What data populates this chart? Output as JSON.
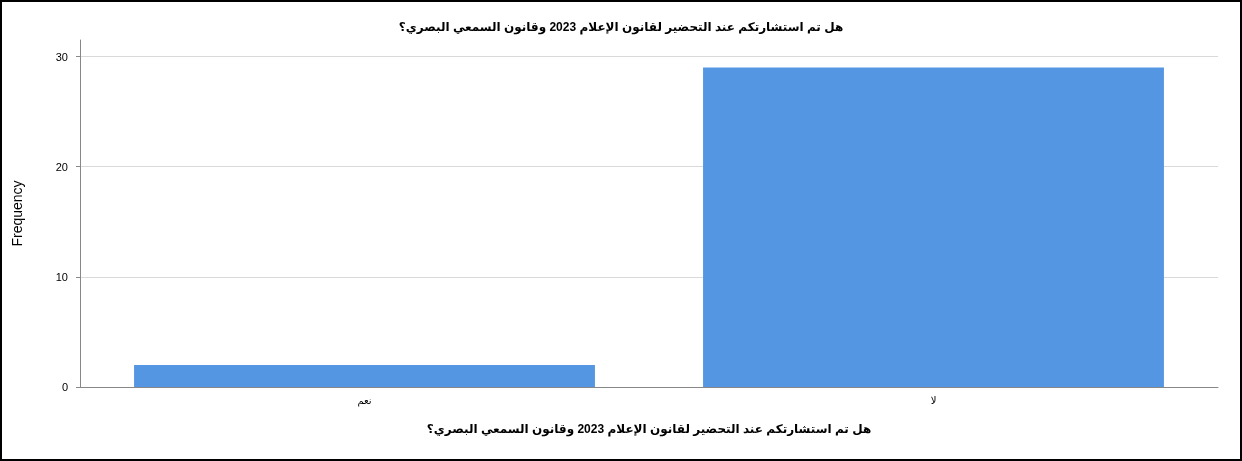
{
  "chart_data": {
    "type": "bar",
    "title": "هل تم استشارتكم عند التحضير لقانون الإعلام 2023 وقانون السمعي البصري؟",
    "xlabel": "هل تم استشارتكم عند التحضير لقانون الإعلام 2023 وقانون السمعي البصري؟",
    "ylabel": "Frequency",
    "categories": [
      "نعم",
      "لا"
    ],
    "values": [
      2,
      29
    ],
    "color": "#5596e3",
    "ylim": [
      0,
      31.5
    ],
    "yticks": [
      0,
      10,
      20,
      30
    ],
    "grid": "y"
  }
}
